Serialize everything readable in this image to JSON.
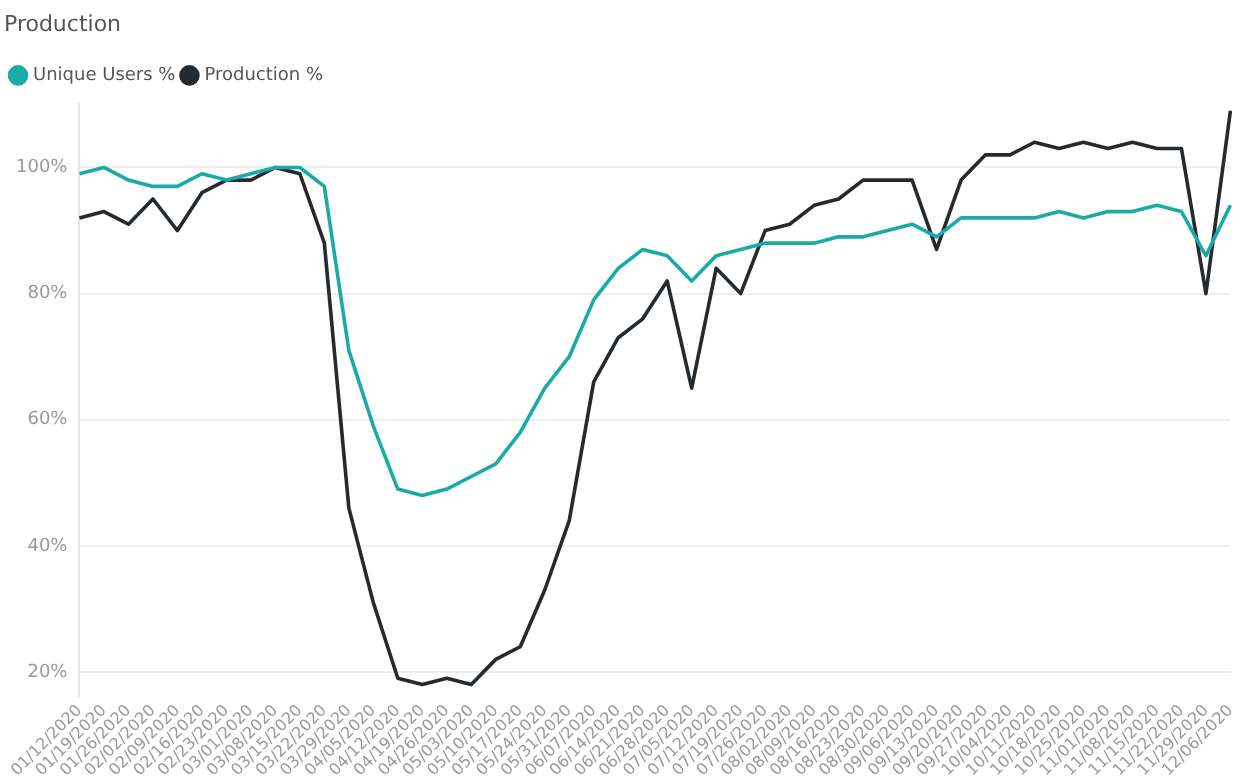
{
  "chart_data": {
    "type": "line",
    "title": "Production",
    "categories": [
      "01/12/2020",
      "01/19/2020",
      "01/26/2020",
      "02/02/2020",
      "02/09/2020",
      "02/16/2020",
      "02/23/2020",
      "03/01/2020",
      "03/08/2020",
      "03/15/2020",
      "03/22/2020",
      "03/29/2020",
      "04/05/2020",
      "04/12/2020",
      "04/19/2020",
      "04/26/2020",
      "05/03/2020",
      "05/10/2020",
      "05/17/2020",
      "05/24/2020",
      "05/31/2020",
      "06/07/2020",
      "06/14/2020",
      "06/21/2020",
      "06/28/2020",
      "07/05/2020",
      "07/12/2020",
      "07/19/2020",
      "07/26/2020",
      "08/02/2020",
      "08/09/2020",
      "08/16/2020",
      "08/23/2020",
      "08/30/2020",
      "09/06/2020",
      "09/13/2020",
      "09/20/2020",
      "09/27/2020",
      "10/04/2020",
      "10/11/2020",
      "10/18/2020",
      "10/25/2020",
      "11/01/2020",
      "11/08/2020",
      "11/15/2020",
      "11/22/2020",
      "11/29/2020",
      "12/06/2020"
    ],
    "series": [
      {
        "name": "Unique Users %",
        "color": "#1aaba8",
        "values": [
          99,
          100,
          98,
          97,
          97,
          99,
          98,
          99,
          100,
          100,
          97,
          71,
          59,
          49,
          48,
          49,
          51,
          53,
          58,
          65,
          70,
          79,
          84,
          87,
          86,
          82,
          86,
          87,
          88,
          88,
          88,
          89,
          89,
          90,
          91,
          89,
          92,
          92,
          92,
          92,
          93,
          92,
          93,
          93,
          94,
          93,
          86,
          94
        ]
      },
      {
        "name": "Production %",
        "color": "#252a2f",
        "values": [
          92,
          93,
          91,
          95,
          90,
          96,
          98,
          98,
          100,
          99,
          88,
          46,
          31,
          19,
          18,
          19,
          18,
          22,
          24,
          33,
          44,
          66,
          73,
          76,
          82,
          65,
          84,
          80,
          90,
          91,
          94,
          95,
          98,
          98,
          98,
          87,
          98,
          102,
          102,
          104,
          103,
          104,
          103,
          104,
          103,
          103,
          80,
          109
        ]
      }
    ],
    "ylim": [
      16,
      110
    ],
    "yticks": [
      {
        "value": 20,
        "label": "20%"
      },
      {
        "value": 40,
        "label": "40%"
      },
      {
        "value": 60,
        "label": "60%"
      },
      {
        "value": 80,
        "label": "80%"
      },
      {
        "value": 100,
        "label": "100%"
      }
    ],
    "grid": "y",
    "legend": "top left",
    "marker": "none",
    "line_style": "solid"
  }
}
